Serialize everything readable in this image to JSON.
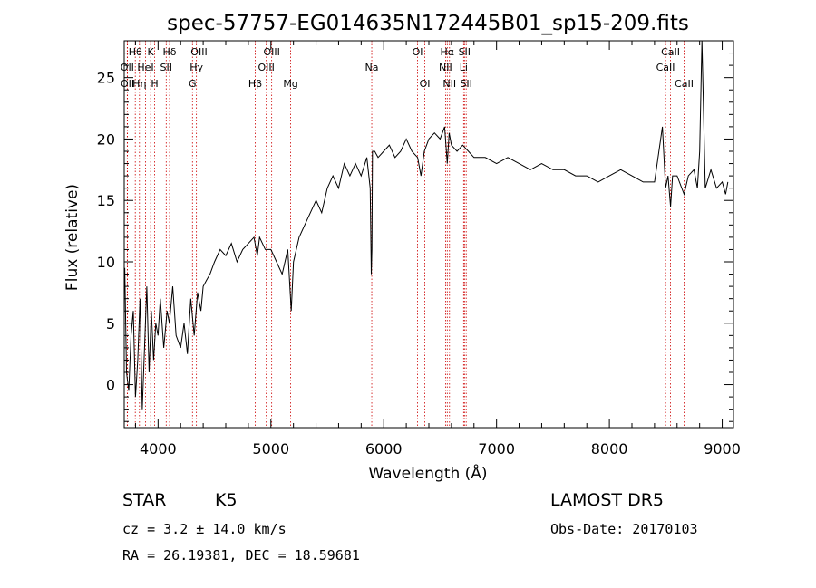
{
  "chart_data": {
    "type": "line",
    "title": "spec-57757-EG014635N172445B01_sp15-209.fits",
    "xlabel": "Wavelength (Å)",
    "ylabel": "Flux (relative)",
    "xlim": [
      3700,
      9100
    ],
    "ylim": [
      -3.5,
      28
    ],
    "x_ticks": [
      4000,
      5000,
      6000,
      7000,
      8000,
      9000
    ],
    "y_ticks": [
      0,
      5,
      10,
      15,
      20,
      25
    ],
    "grid": false,
    "line_color": "#000000",
    "marker_color": "#cc0000",
    "series": [
      {
        "x": [
          3705,
          3720,
          3740,
          3760,
          3780,
          3800,
          3820,
          3840,
          3860,
          3880,
          3900,
          3920,
          3940,
          3960,
          3980,
          4000,
          4020,
          4050,
          4080,
          4100,
          4130,
          4160,
          4200,
          4230,
          4260,
          4290,
          4320,
          4350,
          4380,
          4400,
          4430,
          4460,
          4500,
          4550,
          4600,
          4650,
          4700,
          4750,
          4800,
          4850,
          4880,
          4900,
          4950,
          5000,
          5050,
          5100,
          5150,
          5180,
          5200,
          5250,
          5300,
          5350,
          5400,
          5450,
          5500,
          5550,
          5600,
          5650,
          5700,
          5750,
          5800,
          5850,
          5880,
          5890,
          5895,
          5900,
          5920,
          5950,
          6000,
          6050,
          6100,
          6150,
          6200,
          6250,
          6300,
          6330,
          6360,
          6400,
          6450,
          6500,
          6540,
          6563,
          6580,
          6600,
          6650,
          6700,
          6750,
          6800,
          6900,
          7000,
          7100,
          7200,
          7300,
          7400,
          7500,
          7600,
          7700,
          7800,
          7900,
          8000,
          8100,
          8200,
          8300,
          8400,
          8470,
          8498,
          8520,
          8542,
          8560,
          8600,
          8662,
          8700,
          8750,
          8780,
          8800,
          8820,
          8850,
          8900,
          8950,
          9000,
          9030,
          9050
        ],
        "y": [
          9.5,
          1,
          -0.5,
          4,
          6,
          -1,
          2,
          7,
          -2,
          3,
          8,
          1,
          6,
          2,
          5,
          4,
          7,
          3,
          6,
          5,
          8,
          4,
          3,
          5,
          2.5,
          7,
          4,
          7.5,
          6,
          8,
          8.5,
          9,
          10,
          11,
          10.5,
          11.5,
          10,
          11,
          11.5,
          12,
          10.5,
          12,
          11,
          11,
          10,
          9,
          11,
          6,
          10,
          12,
          13,
          14,
          15,
          14,
          16,
          17,
          16,
          18,
          17,
          18,
          17,
          18.5,
          16,
          9,
          11,
          19,
          19,
          18.5,
          19,
          19.5,
          18.5,
          19,
          20,
          19,
          18.5,
          17,
          19,
          20,
          20.5,
          20,
          21,
          18,
          20.5,
          19.5,
          19,
          19.5,
          19,
          18.5,
          18.5,
          18,
          18.5,
          18,
          17.5,
          18,
          17.5,
          17.5,
          17,
          17,
          16.5,
          17,
          17.5,
          17,
          16.5,
          16.5,
          21,
          16,
          17,
          14.5,
          17,
          17,
          15.5,
          17,
          17.5,
          16,
          19,
          28,
          16,
          17.5,
          16,
          16.5,
          15.5,
          16.5
        ]
      }
    ],
    "line_markers": [
      {
        "label": "Hθ",
        "x": 3798,
        "row": 1
      },
      {
        "label": "OII",
        "x": 3727,
        "row": 2
      },
      {
        "label": "OII",
        "x": 3729,
        "row": 3
      },
      {
        "label": "Hη",
        "x": 3835,
        "row": 3
      },
      {
        "label": "HeI",
        "x": 3889,
        "row": 2
      },
      {
        "label": "K",
        "x": 3934,
        "row": 1
      },
      {
        "label": "H",
        "x": 3969,
        "row": 3
      },
      {
        "label": "SII",
        "x": 4072,
        "row": 2
      },
      {
        "label": "Hδ",
        "x": 4102,
        "row": 1
      },
      {
        "label": "OIII",
        "x": 4363,
        "row": 1
      },
      {
        "label": "Hγ",
        "x": 4340,
        "row": 2
      },
      {
        "label": "G",
        "x": 4305,
        "row": 3
      },
      {
        "label": "Hβ",
        "x": 4861,
        "row": 3
      },
      {
        "label": "OIII",
        "x": 5007,
        "row": 1
      },
      {
        "label": "OIII",
        "x": 4959,
        "row": 2
      },
      {
        "label": "Mg",
        "x": 5175,
        "row": 3
      },
      {
        "label": "Na",
        "x": 5894,
        "row": 2
      },
      {
        "label": "OI",
        "x": 6300,
        "row": 1
      },
      {
        "label": "OI",
        "x": 6364,
        "row": 3
      },
      {
        "label": "Hα",
        "x": 6563,
        "row": 1
      },
      {
        "label": "NII",
        "x": 6548,
        "row": 2
      },
      {
        "label": "NII",
        "x": 6583,
        "row": 3
      },
      {
        "label": "SII",
        "x": 6716,
        "row": 1
      },
      {
        "label": "Li",
        "x": 6708,
        "row": 2
      },
      {
        "label": "SII",
        "x": 6731,
        "row": 3
      },
      {
        "label": "CaII",
        "x": 8542,
        "row": 1
      },
      {
        "label": "CaII",
        "x": 8498,
        "row": 2
      },
      {
        "label": "CaII",
        "x": 8662,
        "row": 3
      }
    ]
  },
  "info": {
    "object_class": "STAR",
    "subclass": "K5",
    "survey": "LAMOST DR5",
    "redshift_line": "cz = 3.2 ± 14.0 km/s",
    "obs_date_line": "Obs-Date: 20170103",
    "coords_line": "RA =  26.19381, DEC =  18.59681"
  }
}
